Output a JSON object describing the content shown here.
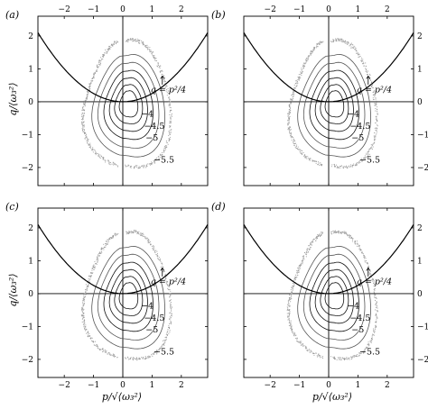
{
  "figure": {
    "panel_labels": [
      "(a)",
      "(b)",
      "(c)",
      "(d)"
    ],
    "xlabel": "p/√⟨ω₃²⟩",
    "ylabel": "q/⟨ω₃²⟩",
    "curve_annotation": "q = p²/4",
    "contour_labels": [
      "−4",
      "−4.5",
      "−5",
      "−5.5"
    ],
    "x_ticks": [
      "−2",
      "−1",
      "0",
      "1",
      "2"
    ],
    "y_ticks": [
      "2",
      "1",
      "0",
      "−1",
      "−2"
    ]
  },
  "chart_data": [
    {
      "panel": "(a)",
      "type": "line",
      "xlim": [
        -2.9,
        2.9
      ],
      "ylim": [
        -2.55,
        2.6
      ],
      "xlabel": "",
      "ylabel": "q/⟨ω₃²⟩",
      "series": [
        {
          "name": "q = p²/4",
          "function": "q = p^2/4"
        }
      ],
      "contour_levels": [
        -4,
        -4.5,
        -5,
        -5.5
      ]
    },
    {
      "panel": "(b)",
      "type": "line",
      "xlim": [
        -2.9,
        2.9
      ],
      "ylim": [
        -2.55,
        2.6
      ],
      "xlabel": "",
      "ylabel": "",
      "series": [
        {
          "name": "q = p²/4",
          "function": "q = p^2/4"
        }
      ],
      "contour_levels": [
        -4,
        -4.5,
        -5,
        -5.5
      ]
    },
    {
      "panel": "(c)",
      "type": "line",
      "xlim": [
        -2.9,
        2.9
      ],
      "ylim": [
        -2.55,
        2.6
      ],
      "xlabel": "p/√⟨ω₃²⟩",
      "ylabel": "q/⟨ω₃²⟩",
      "series": [
        {
          "name": "q = p²/4",
          "function": "q = p^2/4"
        }
      ],
      "contour_levels": [
        -4,
        -4.5,
        -5,
        -5.5
      ]
    },
    {
      "panel": "(d)",
      "type": "line",
      "xlim": [
        -2.9,
        2.9
      ],
      "ylim": [
        -2.55,
        2.6
      ],
      "xlabel": "p/√⟨ω₃²⟩",
      "ylabel": "",
      "series": [
        {
          "name": "q = p²/4",
          "function": "q = p^2/4"
        }
      ],
      "contour_levels": [
        -4,
        -4.5,
        -5,
        -5.5
      ]
    }
  ]
}
